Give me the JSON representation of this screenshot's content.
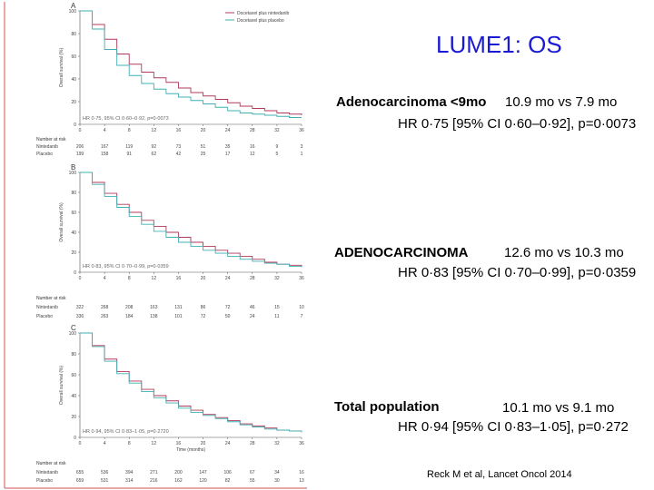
{
  "slide": {
    "title": "LUME1: OS",
    "reference": "Reck M et al, Lancet Oncol 2014"
  },
  "annotations": [
    {
      "label": "Adenocarcinoma <9mo",
      "medians": "10.9 mo vs 7.9 mo",
      "stats": "HR 0·75 [95% CI 0·60–0·92], p=0·0073"
    },
    {
      "label": "ADENOCARCINOMA",
      "medians": "12.6 mo vs 10.3 mo",
      "stats": "HR 0·83 [95% CI 0·70–0·99], p=0·0359"
    },
    {
      "label": "Total population",
      "medians": "10.1 mo vs 9.1 mo",
      "stats": "HR 0·94 [95% CI 0·83–1·05], p=0·272"
    }
  ],
  "colors": {
    "nintedanib": "#b03a5a",
    "placebo": "#3fb0b5",
    "title": "#1a1ad6",
    "frame": "#d05050"
  },
  "chart_data": [
    {
      "type": "line",
      "panel_letter": "A",
      "ylabel": "Overall survival (%)",
      "xlabel": "",
      "legend": [
        "Docetaxel plus nintedanib",
        "Docetaxel plus placebo"
      ],
      "legend_position": "top-right",
      "ylim": [
        0,
        100
      ],
      "xlim": [
        0,
        36
      ],
      "yticks": [
        0,
        20,
        40,
        60,
        80,
        100
      ],
      "xticks": [
        0,
        4,
        8,
        12,
        16,
        20,
        24,
        28,
        32,
        36
      ],
      "hr_text": "HR 0·75, 95% CI 0·60–0·92, p=0·0073",
      "x": [
        0,
        2,
        4,
        6,
        8,
        10,
        12,
        14,
        16,
        18,
        20,
        22,
        24,
        26,
        28,
        30,
        32,
        34,
        36
      ],
      "series": [
        {
          "name": "Docetaxel plus nintedanib",
          "values": [
            100,
            88,
            75,
            62,
            53,
            46,
            41,
            37,
            32,
            28,
            25,
            22,
            19,
            16,
            14,
            12,
            10,
            9,
            8
          ]
        },
        {
          "name": "Docetaxel plus placebo",
          "values": [
            100,
            84,
            66,
            52,
            43,
            36,
            31,
            27,
            24,
            21,
            18,
            15,
            12,
            10,
            9,
            8,
            7,
            6,
            6
          ]
        }
      ],
      "risk_table": {
        "header": "Number at risk",
        "rows": [
          {
            "name": "Nintedanib",
            "values": [
              "206",
              "167",
              "119",
              "92",
              "73",
              "51",
              "35",
              "16",
              "9",
              "3"
            ]
          },
          {
            "name": "Placebo",
            "values": [
              "199",
              "158",
              "91",
              "62",
              "42",
              "25",
              "17",
              "12",
              "5",
              "1"
            ]
          }
        ]
      }
    },
    {
      "type": "line",
      "panel_letter": "B",
      "ylabel": "Overall survival (%)",
      "xlabel": "",
      "legend": [],
      "ylim": [
        0,
        100
      ],
      "xlim": [
        0,
        36
      ],
      "yticks": [
        0,
        20,
        40,
        60,
        80,
        100
      ],
      "xticks": [
        0,
        4,
        8,
        12,
        16,
        20,
        24,
        28,
        32,
        36
      ],
      "hr_text": "HR 0·83, 95% CI 0·70–0·99, p=0·0359",
      "x": [
        0,
        2,
        4,
        6,
        8,
        10,
        12,
        14,
        16,
        18,
        20,
        22,
        24,
        26,
        28,
        30,
        32,
        34,
        36
      ],
      "series": [
        {
          "name": "Docetaxel plus nintedanib",
          "values": [
            100,
            90,
            79,
            68,
            60,
            52,
            46,
            40,
            35,
            30,
            26,
            22,
            19,
            16,
            13,
            10,
            8,
            7,
            6
          ]
        },
        {
          "name": "Docetaxel plus placebo",
          "values": [
            100,
            88,
            76,
            65,
            56,
            48,
            41,
            35,
            30,
            26,
            22,
            19,
            16,
            13,
            11,
            9,
            8,
            6,
            5
          ]
        }
      ],
      "risk_table": {
        "header": "Number at risk",
        "rows": [
          {
            "name": "Nintedanib",
            "values": [
              "322",
              "268",
              "208",
              "163",
              "131",
              "86",
              "72",
              "46",
              "15",
              "10"
            ]
          },
          {
            "name": "Placebo",
            "values": [
              "336",
              "263",
              "184",
              "138",
              "101",
              "72",
              "50",
              "24",
              "11",
              "7"
            ]
          }
        ]
      }
    },
    {
      "type": "line",
      "panel_letter": "C",
      "ylabel": "Overall survival (%)",
      "xlabel": "Time (months)",
      "legend": [],
      "ylim": [
        0,
        100
      ],
      "xlim": [
        0,
        36
      ],
      "yticks": [
        0,
        20,
        40,
        60,
        80,
        100
      ],
      "xticks": [
        0,
        4,
        8,
        12,
        16,
        20,
        24,
        28,
        32,
        36
      ],
      "hr_text": "HR 0·94, 95% CI 0·83–1·05, p=0·2720",
      "x": [
        0,
        2,
        4,
        6,
        8,
        10,
        12,
        14,
        16,
        18,
        20,
        22,
        24,
        26,
        28,
        30,
        32,
        34,
        36
      ],
      "series": [
        {
          "name": "Docetaxel plus nintedanib",
          "values": [
            100,
            88,
            75,
            63,
            54,
            46,
            40,
            35,
            30,
            26,
            22,
            19,
            16,
            13,
            11,
            9,
            7,
            6,
            5
          ]
        },
        {
          "name": "Docetaxel plus placebo",
          "values": [
            100,
            87,
            73,
            61,
            52,
            44,
            38,
            33,
            28,
            24,
            21,
            18,
            15,
            12,
            10,
            8,
            7,
            6,
            5
          ]
        }
      ],
      "risk_table": {
        "header": "Number at risk",
        "rows": [
          {
            "name": "Nintedanib",
            "values": [
              "655",
              "536",
              "394",
              "271",
              "200",
              "147",
              "106",
              "67",
              "34",
              "16"
            ]
          },
          {
            "name": "Placebo",
            "values": [
              "659",
              "531",
              "314",
              "216",
              "162",
              "120",
              "82",
              "55",
              "30",
              "13"
            ]
          }
        ]
      }
    }
  ]
}
